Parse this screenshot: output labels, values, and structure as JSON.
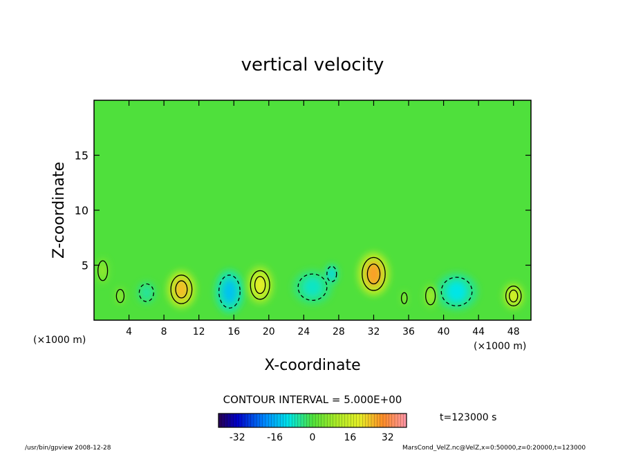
{
  "chart_data": {
    "type": "heatmap",
    "title": "vertical velocity",
    "xlabel": "X-coordinate",
    "ylabel": "Z-coordinate",
    "x_unit": "(×1000 m)",
    "x_unit_right": "(×1000 m)",
    "xlim": [
      0,
      50
    ],
    "ylim": [
      0,
      20
    ],
    "x_ticks": [
      4,
      8,
      12,
      16,
      20,
      24,
      28,
      32,
      36,
      40,
      44,
      48
    ],
    "y_ticks": [
      5,
      10,
      15
    ],
    "grid": false,
    "colorbar": {
      "range": [
        -40,
        40
      ],
      "ticks": [
        -32,
        -16,
        0,
        16,
        32
      ],
      "contour_interval_text": "CONTOUR INTERVAL = 5.000E+00"
    },
    "features": [
      {
        "x": 10.0,
        "z": 2.8,
        "w": 2.2,
        "h": 2.6,
        "value": 25
      },
      {
        "x": 15.5,
        "z": 2.6,
        "w": 2.2,
        "h": 3.0,
        "value": -14
      },
      {
        "x": 19.0,
        "z": 3.2,
        "w": 2.0,
        "h": 2.6,
        "value": 20
      },
      {
        "x": 25.0,
        "z": 3.0,
        "w": 3.0,
        "h": 2.4,
        "value": -8
      },
      {
        "x": 27.2,
        "z": 4.2,
        "w": 1.0,
        "h": 1.4,
        "value": -12
      },
      {
        "x": 32.0,
        "z": 4.2,
        "w": 2.4,
        "h": 3.0,
        "value": 28
      },
      {
        "x": 41.5,
        "z": 2.6,
        "w": 3.2,
        "h": 2.6,
        "value": -10
      },
      {
        "x": 6.0,
        "z": 2.5,
        "w": 1.5,
        "h": 1.6,
        "value": -6
      },
      {
        "x": 48.0,
        "z": 2.2,
        "w": 1.6,
        "h": 1.8,
        "value": 18
      },
      {
        "x": 1.0,
        "z": 4.5,
        "w": 1.0,
        "h": 1.8,
        "value": 8
      },
      {
        "x": 3.0,
        "z": 2.2,
        "w": 0.8,
        "h": 1.2,
        "value": 8
      },
      {
        "x": 38.5,
        "z": 2.2,
        "w": 1.0,
        "h": 1.6,
        "value": 10
      },
      {
        "x": 35.5,
        "z": 2.0,
        "w": 0.6,
        "h": 1.0,
        "value": 8
      }
    ]
  },
  "annotations": {
    "time_label": "t=123000 s",
    "footer_left": "/usr/bin/gpview  2008-12-28",
    "footer_right": "MarsCond_VelZ.nc@VelZ,x=0:50000,z=0:20000,t=123000"
  }
}
